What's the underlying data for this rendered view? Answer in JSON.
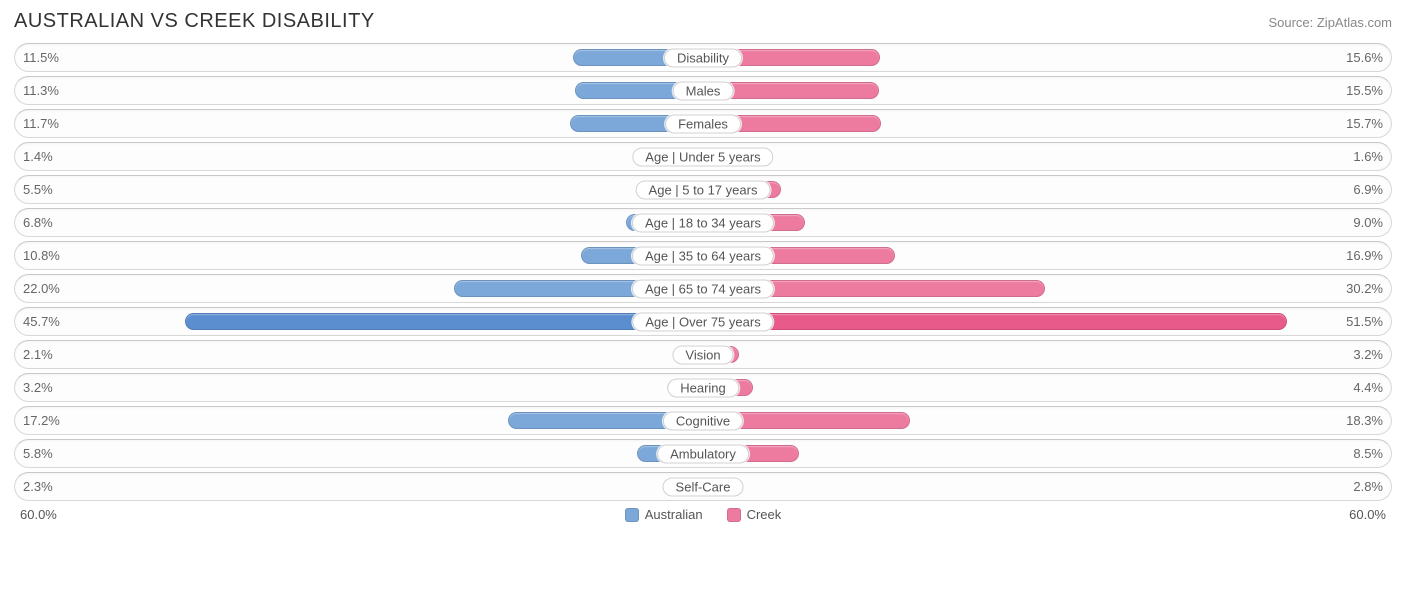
{
  "title": "AUSTRALIAN VS CREEK DISABILITY",
  "source": "Source: ZipAtlas.com",
  "chart": {
    "type": "diverging-bar",
    "axis_max": 60.0,
    "axis_label_left": "60.0%",
    "axis_label_right": "60.0%",
    "background_color": "#ffffff",
    "row_border_color": "#d8d8d8",
    "label_pill_border": "#d0d0d0",
    "value_text_color": "#666666",
    "title_color": "#333333",
    "source_color": "#888888",
    "title_fontsize": 20,
    "value_fontsize": 13,
    "label_fontsize": 13,
    "series": [
      {
        "key": "australian",
        "name": "Australian",
        "color": "#7ba7d9"
      },
      {
        "key": "creek",
        "name": "Creek",
        "color": "#ed7ba0"
      }
    ],
    "highlight_row_index": 8,
    "highlight_colors": {
      "australian": "#5a8ecf",
      "creek": "#e85a8a"
    },
    "rows": [
      {
        "label": "Disability",
        "australian": 11.5,
        "creek": 15.6
      },
      {
        "label": "Males",
        "australian": 11.3,
        "creek": 15.5
      },
      {
        "label": "Females",
        "australian": 11.7,
        "creek": 15.7
      },
      {
        "label": "Age | Under 5 years",
        "australian": 1.4,
        "creek": 1.6
      },
      {
        "label": "Age | 5 to 17 years",
        "australian": 5.5,
        "creek": 6.9
      },
      {
        "label": "Age | 18 to 34 years",
        "australian": 6.8,
        "creek": 9.0
      },
      {
        "label": "Age | 35 to 64 years",
        "australian": 10.8,
        "creek": 16.9
      },
      {
        "label": "Age | 65 to 74 years",
        "australian": 22.0,
        "creek": 30.2
      },
      {
        "label": "Age | Over 75 years",
        "australian": 45.7,
        "creek": 51.5
      },
      {
        "label": "Vision",
        "australian": 2.1,
        "creek": 3.2
      },
      {
        "label": "Hearing",
        "australian": 3.2,
        "creek": 4.4
      },
      {
        "label": "Cognitive",
        "australian": 17.2,
        "creek": 18.3
      },
      {
        "label": "Ambulatory",
        "australian": 5.8,
        "creek": 8.5
      },
      {
        "label": "Self-Care",
        "australian": 2.3,
        "creek": 2.8
      }
    ]
  }
}
